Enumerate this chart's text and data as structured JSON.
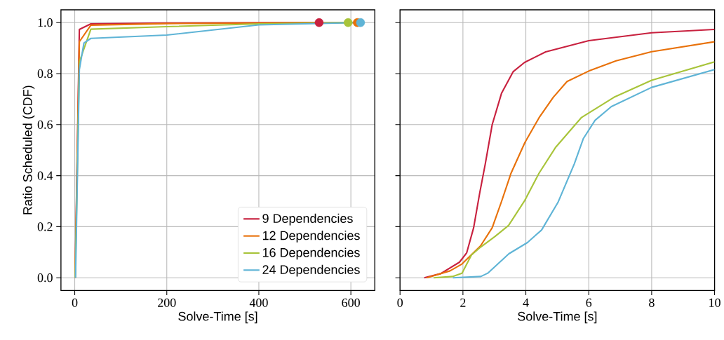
{
  "chart_data": [
    {
      "type": "line",
      "xlabel": "Solve-Time [s]",
      "ylabel": "Ratio Scheduled (CDF)",
      "xlim": [
        -30,
        652
      ],
      "xticks": [
        0,
        200,
        400,
        600
      ],
      "ylim": [
        -0.05,
        1.05
      ],
      "yticks": [
        {
          "value": 0,
          "label": "0.0"
        },
        {
          "value": 0.2,
          "label": "0.2"
        },
        {
          "value": 0.4,
          "label": "0.4"
        },
        {
          "value": 0.6,
          "label": "0.6"
        },
        {
          "value": 0.8,
          "label": "0.8"
        },
        {
          "value": 1,
          "label": "1.0"
        }
      ],
      "grid": true,
      "legend": "bottom right",
      "marker": "none",
      "line_style": "solid",
      "series": [
        {
          "name": "9 Dependencies",
          "color": "#c8213f",
          "x": [
            0.77,
            10,
            35,
            200,
            531
          ],
          "values": [
            0,
            0.973,
            0.995,
            0.998,
            1.0
          ]
        },
        {
          "name": "12 Dependencies",
          "color": "#e8710a",
          "x": [
            0.85,
            10,
            35,
            200,
            614
          ],
          "values": [
            0,
            0.925,
            0.99,
            0.996,
            1.0
          ]
        },
        {
          "name": "16 Dependencies",
          "color": "#a8c43a",
          "x": [
            1.07,
            10,
            35,
            200,
            400,
            594
          ],
          "values": [
            0,
            0.846,
            0.974,
            0.984,
            0.995,
            1.0
          ]
        },
        {
          "name": "24 Dependencies",
          "color": "#5fb4d6",
          "x": [
            1.68,
            10,
            20,
            35,
            200,
            400,
            621
          ],
          "values": [
            0,
            0.816,
            0.92,
            0.938,
            0.951,
            0.991,
            1.0
          ]
        },
        {
          "type": "scatter",
          "marker": "circle",
          "color": "#c8213f",
          "x": [
            531
          ],
          "values": [
            1.0
          ]
        },
        {
          "type": "scatter",
          "marker": "circle",
          "color": "#a8c43a",
          "x": [
            594
          ],
          "values": [
            1.0
          ]
        },
        {
          "type": "scatter",
          "marker": "circle",
          "color": "#e8710a",
          "x": [
            614
          ],
          "values": [
            1.0
          ]
        },
        {
          "type": "scatter",
          "marker": "circle",
          "color": "#5fb4d6",
          "x": [
            621
          ],
          "values": [
            1.0
          ]
        }
      ]
    },
    {
      "type": "line",
      "xlabel": "Solve-Time [s]",
      "xlim": [
        0,
        10
      ],
      "xticks": [
        0,
        2,
        4,
        6,
        8,
        10
      ],
      "ylim": [
        -0.05,
        1.05
      ],
      "yticks": [
        0,
        0.2,
        0.4,
        0.6,
        0.8,
        1
      ],
      "tick_labels": "x",
      "grid": true,
      "marker": "none",
      "line_style": "solid",
      "series": [
        {
          "color": "#c8213f",
          "x": [
            0.77,
            1.29,
            1.89,
            2.12,
            2.34,
            2.53,
            2.71,
            2.93,
            3.23,
            3.6,
            3.96,
            4.63,
            6,
            8,
            10
          ],
          "values": [
            0,
            0.016,
            0.061,
            0.098,
            0.196,
            0.33,
            0.446,
            0.6,
            0.724,
            0.808,
            0.844,
            0.885,
            0.929,
            0.96,
            0.973
          ]
        },
        {
          "color": "#e8710a",
          "x": [
            0.85,
            1.59,
            1.97,
            2.56,
            2.93,
            3.23,
            3.53,
            3.97,
            4.42,
            4.87,
            5.31,
            6,
            6.87,
            8,
            10
          ],
          "values": [
            0,
            0.027,
            0.054,
            0.125,
            0.196,
            0.3,
            0.41,
            0.53,
            0.627,
            0.707,
            0.769,
            0.81,
            0.85,
            0.886,
            0.925
          ]
        },
        {
          "color": "#a8c43a",
          "x": [
            1.07,
            1.67,
            1.97,
            2.27,
            2.56,
            3.01,
            3.45,
            3.97,
            4.42,
            4.94,
            5.76,
            6.8,
            8,
            10
          ],
          "values": [
            0,
            0.005,
            0.018,
            0.089,
            0.12,
            0.161,
            0.205,
            0.304,
            0.41,
            0.51,
            0.627,
            0.707,
            0.774,
            0.846
          ]
        },
        {
          "color": "#5fb4d6",
          "x": [
            1.68,
            2.57,
            2.79,
            3.46,
            4.05,
            4.5,
            5.02,
            5.54,
            5.83,
            6.2,
            6.72,
            8,
            10
          ],
          "values": [
            0,
            0.005,
            0.018,
            0.094,
            0.138,
            0.187,
            0.295,
            0.446,
            0.546,
            0.617,
            0.671,
            0.746,
            0.816
          ]
        }
      ]
    }
  ]
}
